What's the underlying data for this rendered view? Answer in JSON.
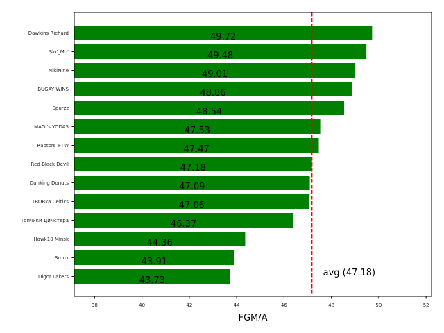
{
  "chart_data": {
    "type": "bar",
    "orientation": "horizontal",
    "title": "",
    "xlabel": "FGM/A",
    "ylabel": "",
    "xlim": [
      37.14,
      52.23
    ],
    "xticks": [
      38,
      40,
      42,
      44,
      46,
      48,
      50,
      52
    ],
    "grid": false,
    "legend": null,
    "bar_color": "#008000",
    "categories": [
      "Dawkins Richard",
      "Slo'_Mo'",
      "NikiNine",
      "BUGAY WINS",
      "Spurzz",
      "MAGI's YODAS",
      "Raptors_FTW",
      "Red-Black Devil",
      "Dunking Donuts",
      "1BOBka Celtics",
      "Топчики Димстера",
      "Hawk10 Minsk",
      "Bronx",
      "Digor Lakers"
    ],
    "values": [
      49.72,
      49.48,
      49.01,
      48.86,
      48.54,
      47.53,
      47.47,
      47.18,
      47.09,
      47.06,
      46.37,
      44.36,
      43.91,
      43.73
    ],
    "value_labels": [
      "49.72",
      "49.48",
      "49.01",
      "48.86",
      "48.54",
      "47.53",
      "47.47",
      "47.18",
      "47.09",
      "47.06",
      "46.37",
      "44.36",
      "43.91",
      "43.73"
    ],
    "reference_line": {
      "orientation": "vertical",
      "value": 47.18,
      "style": "dashed",
      "color": "#ff0000",
      "label": "avg (47.18)"
    }
  }
}
